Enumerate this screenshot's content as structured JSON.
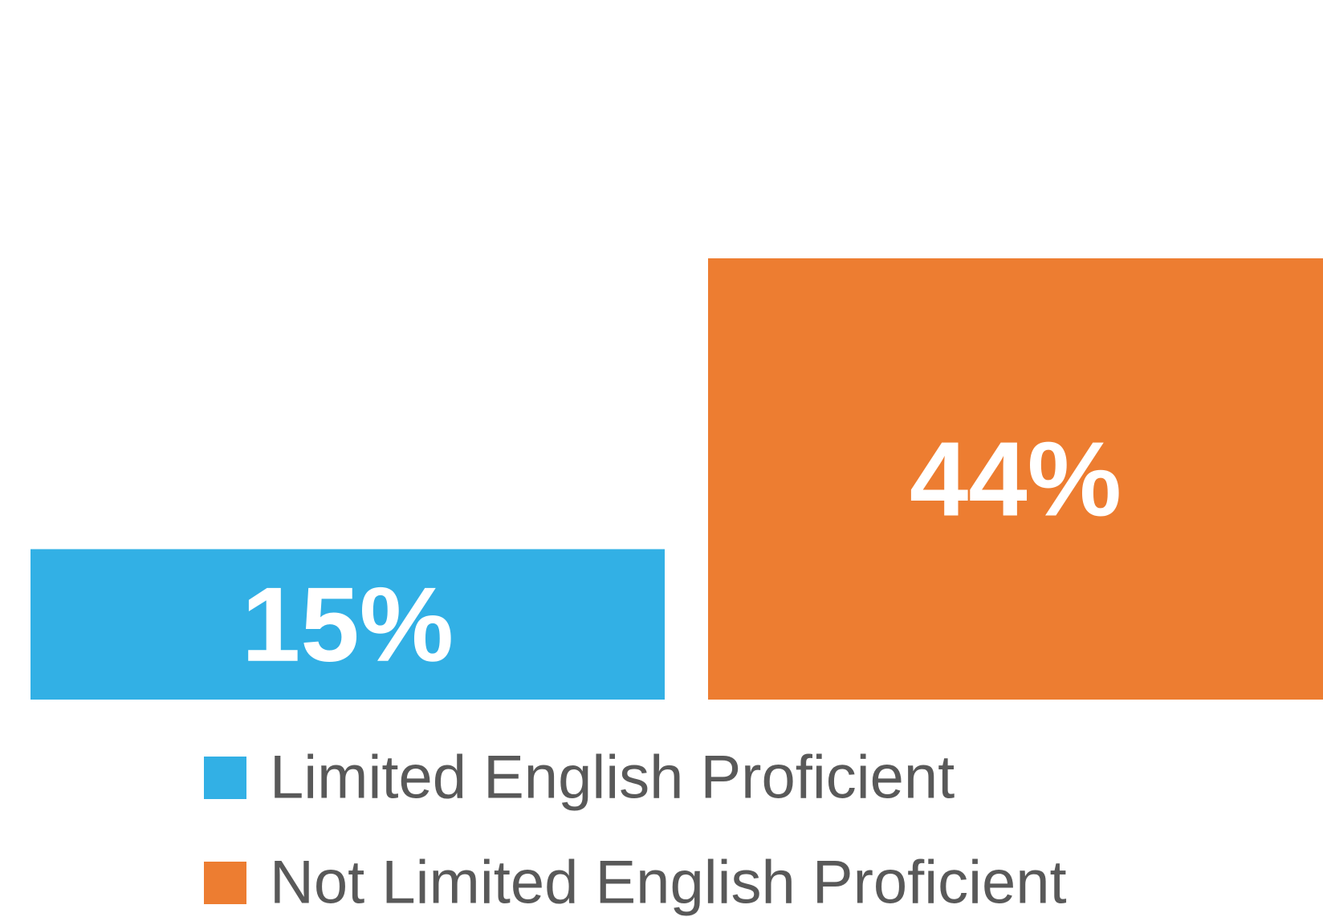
{
  "chart_data": {
    "type": "bar",
    "series": [
      {
        "name": "Limited English Proficient",
        "color": "#32b0e5",
        "values": [
          15
        ],
        "value_labels": [
          "15%"
        ]
      },
      {
        "name": "Not Limited English Proficient",
        "color": "#ed7d31",
        "values": [
          44
        ],
        "value_labels": [
          "44%"
        ]
      }
    ],
    "ylim": [
      0,
      50
    ]
  }
}
